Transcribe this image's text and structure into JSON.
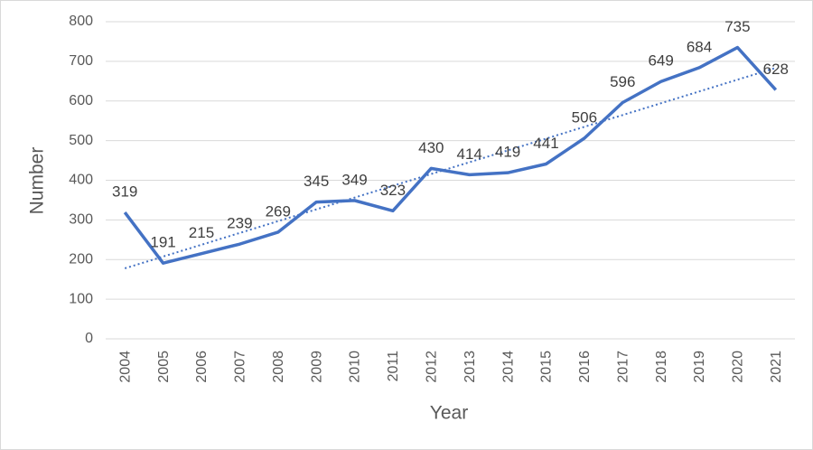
{
  "chart_data": {
    "type": "line",
    "x_label": "Year",
    "y_label": "Number",
    "categories": [
      "2004",
      "2005",
      "2006",
      "2007",
      "2008",
      "2009",
      "2010",
      "2011",
      "2012",
      "2013",
      "2014",
      "2015",
      "2016",
      "2017",
      "2018",
      "2019",
      "2020",
      "2021"
    ],
    "series": [
      {
        "name": "Number",
        "color": "#4472c4",
        "values": [
          319,
          191,
          215,
          239,
          269,
          345,
          349,
          323,
          430,
          414,
          419,
          441,
          506,
          596,
          649,
          684,
          735,
          628
        ]
      }
    ],
    "ylim": [
      0,
      800
    ],
    "yticks": [
      0,
      100,
      200,
      300,
      400,
      500,
      600,
      700,
      800
    ],
    "grid": true,
    "data_labels": true,
    "trendline": "linear"
  }
}
